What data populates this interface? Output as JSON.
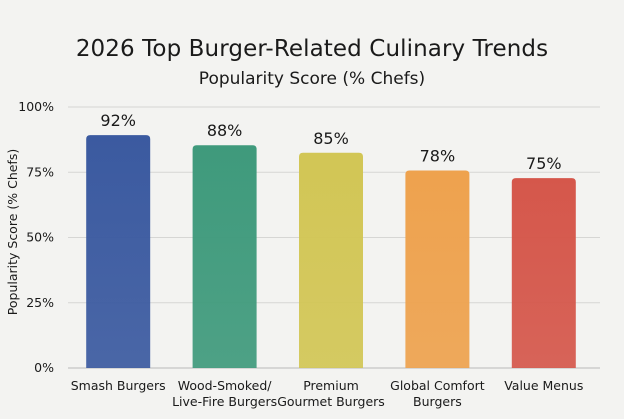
{
  "chart_data": {
    "type": "bar",
    "title": "2026 Top Burger-Related Culinary Trends",
    "subtitle": "Popularity Score (% Chefs)",
    "ylabel": "Popularity Score (% Chefs)",
    "xlabel": "",
    "ylim": [
      0,
      100
    ],
    "yticks": [
      "0%",
      "25%",
      "50%",
      "75%",
      "100%"
    ],
    "ytick_values": [
      0,
      25,
      50,
      75,
      100
    ],
    "grid": true,
    "categories": [
      [
        "Smash Burgers"
      ],
      [
        "Wood-Smoked/",
        "Live-Fire Burgers"
      ],
      [
        "Premium",
        "Gourmet Burgers"
      ],
      [
        "Global Comfort",
        "Burgers"
      ],
      [
        "Value Menus"
      ]
    ],
    "values": [
      92,
      88,
      85,
      78,
      75
    ],
    "data_labels": [
      "92%",
      "88%",
      "85%",
      "78%",
      "75%"
    ],
    "colors": [
      "#3b5aa0",
      "#3f9a7c",
      "#d2c655",
      "#eea24e",
      "#d5574b"
    ]
  }
}
